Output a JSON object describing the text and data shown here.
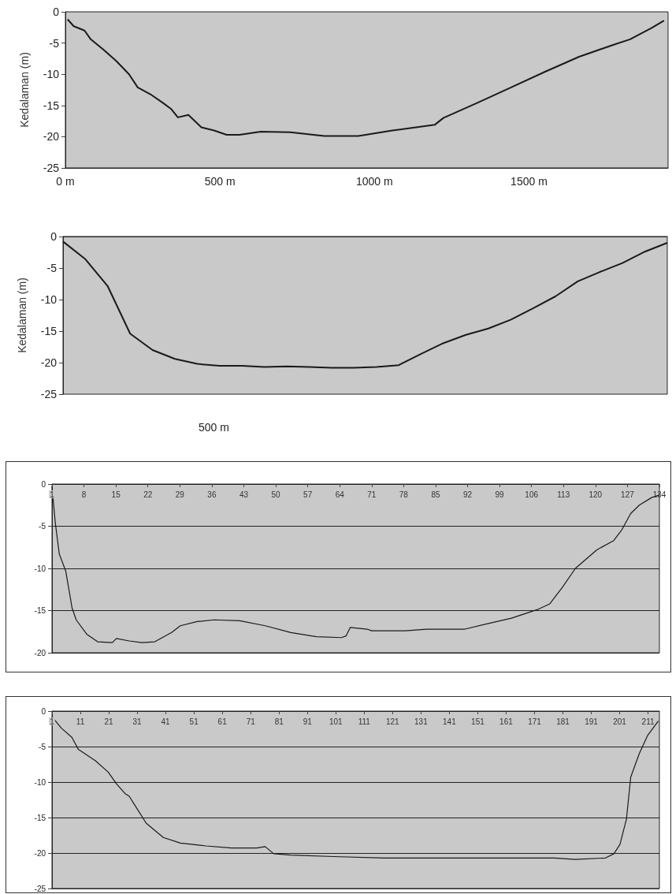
{
  "chart_data": [
    {
      "type": "line",
      "ylabel": "Kedalaman (m)",
      "xlim": [
        0,
        1950
      ],
      "xticks": [
        {
          "value": 0,
          "label": "0 m"
        },
        {
          "value": 500,
          "label": "500 m"
        },
        {
          "value": 1000,
          "label": "1000 m"
        },
        {
          "value": 1500,
          "label": "1500 m"
        }
      ],
      "ylim": [
        -25,
        0
      ],
      "yticks": [
        0,
        -5,
        -10,
        -15,
        -20,
        -25
      ],
      "grid": false,
      "marker": "none",
      "series": [
        {
          "color": "#1a1a1a",
          "x": [
            7,
            27,
            62,
            82,
            124,
            165,
            206,
            234,
            275,
            316,
            343,
            364,
            398,
            440,
            481,
            522,
            563,
            632,
            728,
            838,
            948,
            1058,
            1195,
            1223,
            1332,
            1442,
            1552,
            1662,
            1772,
            1827,
            1896,
            1937
          ],
          "values": [
            -1.2,
            -2.3,
            -3,
            -4.4,
            -6.1,
            -7.9,
            -10,
            -12.1,
            -13.2,
            -14.6,
            -15.6,
            -16.9,
            -16.5,
            -18.5,
            -19,
            -19.7,
            -19.7,
            -19.2,
            -19.3,
            -19.9,
            -19.9,
            -19,
            -18.1,
            -17,
            -14.6,
            -12.1,
            -9.6,
            -7.2,
            -5.3,
            -4.4,
            -2.6,
            -1.4
          ]
        }
      ]
    },
    {
      "type": "line",
      "ylabel": "Kedalaman (m)",
      "annotations": [
        "500 m"
      ],
      "categories": [
        null,
        null,
        null,
        null,
        null,
        null,
        null,
        null,
        null,
        null,
        null,
        null,
        null,
        null,
        null,
        null,
        null,
        null,
        null,
        null,
        null,
        null,
        null,
        null,
        null,
        null,
        null,
        null
      ],
      "tick_labels": "y",
      "ylim": [
        -25,
        0
      ],
      "yticks": [
        0,
        -5,
        -10,
        -15,
        -20,
        -25
      ],
      "grid": false,
      "marker": "none",
      "series": [
        {
          "color": "#1a1a1a",
          "values": [
            -0.8,
            -3.6,
            -7.9,
            -15.4,
            -18,
            -19.4,
            -20.2,
            -20.5,
            -20.5,
            -20.7,
            -20.6,
            -20.7,
            -20.8,
            -20.8,
            -20.7,
            -20.4,
            -18.6,
            -16.9,
            -15.6,
            -14.6,
            -13.2,
            -11.4,
            -9.5,
            -7.1,
            -5.6,
            -4.2,
            -2.4,
            -1
          ]
        }
      ]
    },
    {
      "type": "line",
      "xlim": [
        1,
        134
      ],
      "xticks": [
        1,
        8,
        15,
        22,
        29,
        36,
        43,
        50,
        57,
        64,
        71,
        78,
        85,
        92,
        99,
        106,
        113,
        120,
        127,
        134
      ],
      "ylim": [
        -20,
        0
      ],
      "yticks": [
        0,
        -5,
        -10,
        -15,
        -20
      ],
      "grid": "y",
      "marker": "none",
      "series": [
        {
          "color": "#1a1a1a",
          "x": [
            1,
            1.7,
            2.6,
            4,
            5.4,
            6.3,
            8.6,
            11,
            14.2,
            15.1,
            17.9,
            20.7,
            23.5,
            27.2,
            29.1,
            32.8,
            36.5,
            42.1,
            47.7,
            53.3,
            58.9,
            64.4,
            65.4,
            66.3,
            70,
            71,
            78.4,
            83,
            91.4,
            96,
            101.6,
            107.2,
            110,
            112.8,
            115.6,
            120.3,
            124,
            125.8,
            127.7,
            129.6,
            132.3,
            134
          ],
          "values": [
            -0.3,
            -4.5,
            -8.3,
            -10.3,
            -14.7,
            -16.1,
            -17.8,
            -18.7,
            -18.8,
            -18.3,
            -18.6,
            -18.8,
            -18.7,
            -17.6,
            -16.8,
            -16.3,
            -16.1,
            -16.2,
            -16.8,
            -17.6,
            -18.1,
            -18.2,
            -18,
            -17,
            -17.2,
            -17.4,
            -17.4,
            -17.2,
            -17.2,
            -16.6,
            -15.9,
            -14.9,
            -14.2,
            -12.2,
            -10,
            -7.8,
            -6.7,
            -5.4,
            -3.5,
            -2.5,
            -1.6,
            -1.3
          ]
        }
      ]
    },
    {
      "type": "line",
      "xlim": [
        1,
        215
      ],
      "xticks": [
        1,
        11,
        21,
        31,
        41,
        51,
        61,
        71,
        81,
        91,
        101,
        111,
        121,
        131,
        141,
        151,
        161,
        171,
        181,
        191,
        201,
        211
      ],
      "ylim": [
        -25,
        0
      ],
      "yticks": [
        0,
        -5,
        -10,
        -15,
        -20,
        -25
      ],
      "grid": "y",
      "marker": "none",
      "series": [
        {
          "color": "#1a1a1a",
          "x": [
            1,
            4.3,
            8,
            10.3,
            16.3,
            20.8,
            23.8,
            26.7,
            28.2,
            31.2,
            34.2,
            37.2,
            40.2,
            46.2,
            55.2,
            64.2,
            73.2,
            76.1,
            79.1,
            85.1,
            100.1,
            118.1,
            148,
            178,
            185.4,
            196,
            199,
            201.1,
            203.4,
            204.9,
            207.9,
            210.9,
            214.6
          ],
          "values": [
            -0.8,
            -2.4,
            -3.7,
            -5.4,
            -7,
            -8.6,
            -10.3,
            -11.6,
            -12,
            -13.9,
            -15.8,
            -16.8,
            -17.8,
            -18.6,
            -19,
            -19.3,
            -19.3,
            -19.1,
            -20.1,
            -20.3,
            -20.5,
            -20.7,
            -20.7,
            -20.7,
            -20.9,
            -20.7,
            -20.1,
            -18.8,
            -15.2,
            -9.3,
            -6,
            -3.4,
            -1.4
          ]
        }
      ]
    }
  ]
}
